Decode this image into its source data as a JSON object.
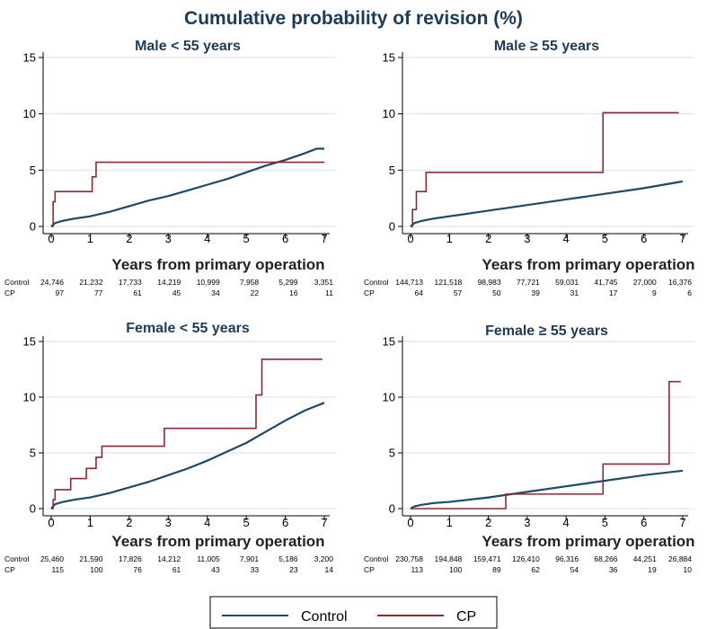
{
  "page_title": "Cumulative probability of revision (%)",
  "colors": {
    "control": "#1d4a6b",
    "cp": "#8b2a30",
    "title": "#1c3a5a",
    "grid": "#d4e2e8"
  },
  "risk_labels": {
    "control": "Control",
    "cp": "CP"
  },
  "legend": [
    {
      "label": "Control",
      "color": "#1d4a6b"
    },
    {
      "label": "CP",
      "color": "#8b2a30"
    }
  ],
  "chart_data": [
    {
      "type": "line",
      "title": "Male < 55 years",
      "xlabel": "Years from primary operation",
      "ylabel": "",
      "xlim": [
        0,
        7
      ],
      "ylim": [
        0,
        15
      ],
      "xticks": [
        0,
        1,
        2,
        3,
        4,
        5,
        6,
        7
      ],
      "yticks": [
        0,
        5,
        10,
        15
      ],
      "grid": true,
      "series": [
        {
          "name": "Control",
          "step": false,
          "x": [
            0,
            0.1,
            0.3,
            0.6,
            1,
            1.5,
            2,
            2.5,
            3,
            3.5,
            4,
            4.5,
            5,
            5.5,
            6,
            6.5,
            6.8,
            7
          ],
          "y": [
            0,
            0.3,
            0.5,
            0.7,
            0.9,
            1.3,
            1.8,
            2.3,
            2.7,
            3.2,
            3.7,
            4.2,
            4.8,
            5.4,
            5.9,
            6.5,
            6.9,
            6.9
          ]
        },
        {
          "name": "CP",
          "step": true,
          "x": [
            0,
            0.05,
            0.1,
            1.05,
            1.15,
            7
          ],
          "y": [
            0,
            2.2,
            3.1,
            4.4,
            5.7,
            5.7
          ]
        }
      ],
      "at_risk": {
        "control": [
          "24,746",
          "21,232",
          "17,733",
          "14,219",
          "10,999",
          "7,958",
          "5,299",
          "3,351"
        ],
        "cp": [
          "97",
          "77",
          "61",
          "45",
          "34",
          "22",
          "16",
          "11"
        ]
      }
    },
    {
      "type": "line",
      "title": "Male ≥ 55 years",
      "xlabel": "Years from primary operation",
      "ylabel": "",
      "xlim": [
        0,
        7
      ],
      "ylim": [
        0,
        15
      ],
      "xticks": [
        0,
        1,
        2,
        3,
        4,
        5,
        6,
        7
      ],
      "yticks": [
        0,
        5,
        10,
        15
      ],
      "grid": true,
      "series": [
        {
          "name": "Control",
          "step": false,
          "x": [
            0,
            0.1,
            0.3,
            0.6,
            1,
            2,
            3,
            4,
            5,
            6,
            7
          ],
          "y": [
            0,
            0.3,
            0.5,
            0.7,
            0.9,
            1.4,
            1.9,
            2.4,
            2.9,
            3.4,
            4.0
          ]
        },
        {
          "name": "CP",
          "step": true,
          "x": [
            0,
            0.05,
            0.15,
            0.4,
            4.95,
            6.9
          ],
          "y": [
            0,
            1.5,
            3.1,
            4.8,
            10.1,
            10.1
          ]
        }
      ],
      "at_risk": {
        "control": [
          "144,713",
          "121,518",
          "98,983",
          "77,721",
          "59,031",
          "41,745",
          "27,000",
          "16,376"
        ],
        "cp": [
          "64",
          "57",
          "50",
          "39",
          "31",
          "17",
          "9",
          "6"
        ]
      }
    },
    {
      "type": "line",
      "title": "Female < 55 years",
      "xlabel": "Years from primary operation",
      "ylabel": "",
      "xlim": [
        0,
        7
      ],
      "ylim": [
        0,
        15
      ],
      "xticks": [
        0,
        1,
        2,
        3,
        4,
        5,
        6,
        7
      ],
      "yticks": [
        0,
        5,
        10,
        15
      ],
      "grid": true,
      "series": [
        {
          "name": "Control",
          "step": false,
          "x": [
            0,
            0.1,
            0.3,
            0.6,
            1,
            1.5,
            2,
            2.5,
            3,
            3.5,
            4,
            4.5,
            5,
            5.5,
            6,
            6.5,
            7
          ],
          "y": [
            0,
            0.4,
            0.6,
            0.8,
            1.0,
            1.4,
            1.9,
            2.4,
            3.0,
            3.6,
            4.3,
            5.1,
            5.9,
            6.9,
            7.9,
            8.8,
            9.5
          ]
        },
        {
          "name": "CP",
          "step": true,
          "x": [
            0,
            0.05,
            0.1,
            0.5,
            0.9,
            1.15,
            1.3,
            2.9,
            5.25,
            5.4,
            6.95
          ],
          "y": [
            0,
            0.8,
            1.7,
            2.7,
            3.6,
            4.6,
            5.6,
            7.2,
            10.2,
            13.4,
            13.4
          ]
        }
      ],
      "at_risk": {
        "control": [
          "25,460",
          "21,590",
          "17,826",
          "14,212",
          "11,005",
          "7,901",
          "5,186",
          "3,200"
        ],
        "cp": [
          "115",
          "100",
          "76",
          "61",
          "43",
          "33",
          "23",
          "14"
        ]
      }
    },
    {
      "type": "line",
      "title": "Female ≥ 55 years",
      "xlabel": "Years from primary operation",
      "ylabel": "",
      "xlim": [
        0,
        7
      ],
      "ylim": [
        0,
        15
      ],
      "xticks": [
        0,
        1,
        2,
        3,
        4,
        5,
        6,
        7
      ],
      "yticks": [
        0,
        5,
        10,
        15
      ],
      "grid": true,
      "series": [
        {
          "name": "Control",
          "step": false,
          "x": [
            0,
            0.1,
            0.3,
            0.6,
            1,
            2,
            3,
            4,
            5,
            6,
            7
          ],
          "y": [
            0,
            0.2,
            0.35,
            0.5,
            0.6,
            1.0,
            1.5,
            2.0,
            2.5,
            3.0,
            3.4
          ]
        },
        {
          "name": "CP",
          "step": true,
          "x": [
            0,
            2.45,
            4.95,
            6.65,
            6.95
          ],
          "y": [
            0,
            1.3,
            4.0,
            11.4,
            11.4
          ]
        }
      ],
      "at_risk": {
        "control": [
          "230,758",
          "194,848",
          "159,471",
          "126,410",
          "96,316",
          "68,266",
          "44,251",
          "26,884"
        ],
        "cp": [
          "113",
          "100",
          "89",
          "62",
          "54",
          "36",
          "19",
          "10"
        ]
      }
    }
  ]
}
